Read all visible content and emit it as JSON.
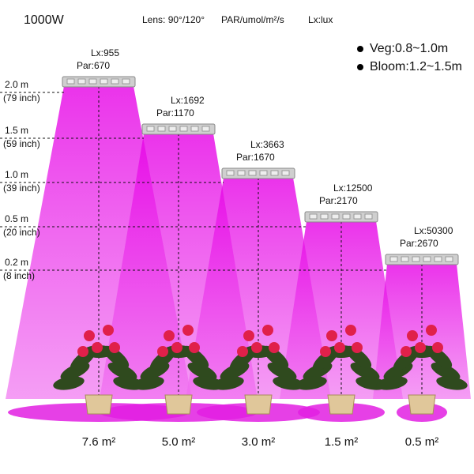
{
  "header": {
    "power": "1000W",
    "lens": "Lens: 90°/120°",
    "par_unit": "PAR/umol/m²/s",
    "lx_unit": "Lx:lux"
  },
  "legend": [
    "Veg:0.8~1.0m",
    "Bloom:1.2~1.5m"
  ],
  "heights": [
    {
      "m": "2.0 m",
      "inch": "(79 inch)"
    },
    {
      "m": "1.5 m",
      "inch": "(59 inch)"
    },
    {
      "m": "1.0 m",
      "inch": "(39 inch)"
    },
    {
      "m": "0.5 m",
      "inch": "(20 inch)"
    },
    {
      "m": "0.2 m",
      "inch": "(8 inch)"
    }
  ],
  "lamps": [
    {
      "lx": "Lx:955",
      "par": "Par:670",
      "area": "7.6 m²"
    },
    {
      "lx": "Lx:1692",
      "par": "Par:1170",
      "area": "5.0 m²"
    },
    {
      "lx": "Lx:3663",
      "par": "Par:1670",
      "area": "3.0 m²"
    },
    {
      "lx": "Lx:12500",
      "par": "Par:2170",
      "area": "1.5 m²"
    },
    {
      "lx": "Lx:50300",
      "par": "Par:2670",
      "area": "0.5 m²"
    }
  ]
}
